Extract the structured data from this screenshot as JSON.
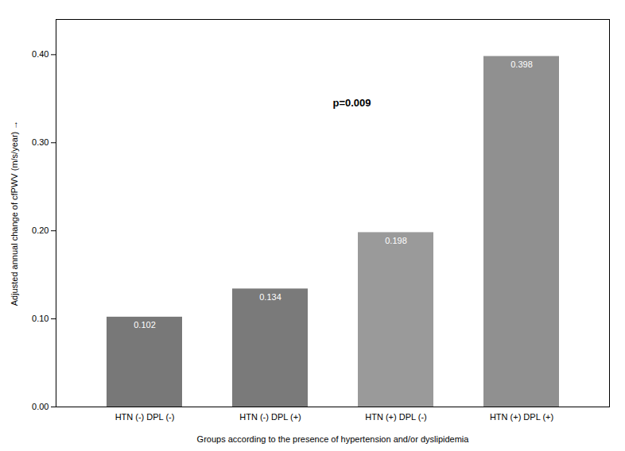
{
  "chart_data": {
    "type": "bar",
    "categories": [
      "HTN (-) DPL (-)",
      "HTN (-) DPL (+)",
      "HTN (+) DPL (-)",
      "HTN (+) DPL (+)"
    ],
    "values": [
      0.102,
      0.134,
      0.198,
      0.398
    ],
    "colors": [
      "#787878",
      "#7a7a7a",
      "#9a9a9a",
      "#909090"
    ],
    "data_labels": true,
    "ylabel": "Adjusted annual change of cfPWV (m/s/year)",
    "xlabel": "Groups according to the presence of hypertension and/or dyslipidemia",
    "annotation": "p=0.009",
    "ylim": [
      0,
      0.44
    ],
    "yticks": [
      {
        "value": 0,
        "label": "0.00"
      },
      {
        "value": 0.1,
        "label": "0.10"
      },
      {
        "value": 0.2,
        "label": "0.20"
      },
      {
        "value": 0.3,
        "label": "0.30"
      },
      {
        "value": 0.4,
        "label": "0.40"
      }
    ]
  }
}
